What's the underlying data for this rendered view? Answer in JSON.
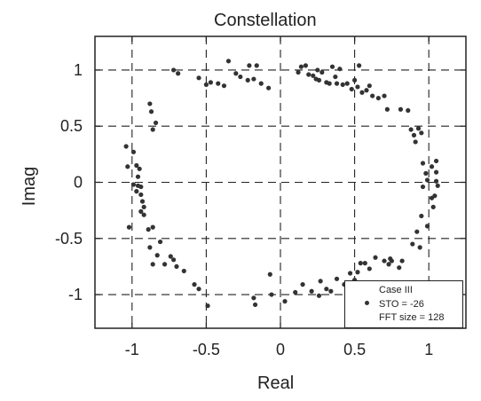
{
  "chart_data": {
    "type": "scatter",
    "title": "Constellation",
    "xlabel": "Real",
    "ylabel": "Imag",
    "xlim": [
      -1.25,
      1.25
    ],
    "ylim": [
      -1.3,
      1.3
    ],
    "xticks": [
      -1,
      -0.5,
      0,
      0.5,
      1
    ],
    "xtick_labels": [
      "-1",
      "-0.5",
      "0",
      "0.5",
      "1"
    ],
    "yticks": [
      1,
      0.5,
      0,
      -0.5,
      -1
    ],
    "ytick_labels": [
      "1",
      "0.5",
      "0",
      "-0.5",
      "-1"
    ],
    "grid": true,
    "grid_style": "dashed",
    "legend": {
      "placement": "bottom-right",
      "lines": [
        "Case III",
        "STO = -26",
        "FFT size = 128"
      ]
    },
    "marker_color": "#333333",
    "points": [
      {
        "x": -0.72,
        "y": 1.0
      },
      {
        "x": -0.69,
        "y": 0.97
      },
      {
        "x": -0.55,
        "y": 0.93
      },
      {
        "x": -0.5,
        "y": 0.87
      },
      {
        "x": -0.47,
        "y": 0.89
      },
      {
        "x": -0.42,
        "y": 0.88
      },
      {
        "x": -0.38,
        "y": 0.86
      },
      {
        "x": -0.35,
        "y": 1.08
      },
      {
        "x": -0.3,
        "y": 0.97
      },
      {
        "x": -0.27,
        "y": 0.94
      },
      {
        "x": -0.22,
        "y": 0.91
      },
      {
        "x": -0.21,
        "y": 1.04
      },
      {
        "x": -0.18,
        "y": 0.92
      },
      {
        "x": -0.16,
        "y": 1.04
      },
      {
        "x": -0.13,
        "y": 0.88
      },
      {
        "x": -0.08,
        "y": 0.84
      },
      {
        "x": 0.12,
        "y": 0.98
      },
      {
        "x": 0.14,
        "y": 1.03
      },
      {
        "x": 0.17,
        "y": 1.04
      },
      {
        "x": 0.19,
        "y": 0.96
      },
      {
        "x": 0.22,
        "y": 0.95
      },
      {
        "x": 0.24,
        "y": 0.92
      },
      {
        "x": 0.25,
        "y": 1.0
      },
      {
        "x": 0.26,
        "y": 0.91
      },
      {
        "x": 0.28,
        "y": 0.98
      },
      {
        "x": 0.31,
        "y": 0.89
      },
      {
        "x": 0.33,
        "y": 0.88
      },
      {
        "x": 0.35,
        "y": 1.03
      },
      {
        "x": 0.37,
        "y": 0.94
      },
      {
        "x": 0.38,
        "y": 0.88
      },
      {
        "x": 0.4,
        "y": 1.01
      },
      {
        "x": 0.42,
        "y": 0.87
      },
      {
        "x": 0.45,
        "y": 0.88
      },
      {
        "x": 0.48,
        "y": 0.83
      },
      {
        "x": 0.5,
        "y": 0.91
      },
      {
        "x": 0.52,
        "y": 0.85
      },
      {
        "x": 0.53,
        "y": 1.04
      },
      {
        "x": 0.55,
        "y": 0.8
      },
      {
        "x": 0.58,
        "y": 0.82
      },
      {
        "x": 0.6,
        "y": 0.86
      },
      {
        "x": 0.62,
        "y": 0.77
      },
      {
        "x": 0.66,
        "y": 0.75
      },
      {
        "x": 0.7,
        "y": 0.77
      },
      {
        "x": 0.72,
        "y": 0.65
      },
      {
        "x": 0.81,
        "y": 0.65
      },
      {
        "x": 0.86,
        "y": 0.64
      },
      {
        "x": 0.88,
        "y": 0.47
      },
      {
        "x": 0.9,
        "y": 0.42
      },
      {
        "x": 0.91,
        "y": 0.36
      },
      {
        "x": 0.93,
        "y": 0.48
      },
      {
        "x": 0.95,
        "y": 0.44
      },
      {
        "x": -0.88,
        "y": 0.7
      },
      {
        "x": -0.87,
        "y": 0.63
      },
      {
        "x": -0.86,
        "y": 0.47
      },
      {
        "x": -0.84,
        "y": 0.53
      },
      {
        "x": -1.04,
        "y": 0.32
      },
      {
        "x": -0.99,
        "y": 0.27
      },
      {
        "x": -1.03,
        "y": 0.14
      },
      {
        "x": -0.97,
        "y": 0.15
      },
      {
        "x": -0.95,
        "y": 0.12
      },
      {
        "x": -0.96,
        "y": 0.05
      },
      {
        "x": -0.99,
        "y": -0.02
      },
      {
        "x": -0.96,
        "y": -0.03
      },
      {
        "x": -0.94,
        "y": -0.04
      },
      {
        "x": -0.97,
        "y": -0.08
      },
      {
        "x": -0.94,
        "y": -0.11
      },
      {
        "x": -0.93,
        "y": -0.17
      },
      {
        "x": -0.92,
        "y": -0.22
      },
      {
        "x": -0.94,
        "y": -0.26
      },
      {
        "x": -0.92,
        "y": -0.29
      },
      {
        "x": -1.02,
        "y": -0.4
      },
      {
        "x": -0.89,
        "y": -0.42
      },
      {
        "x": -0.86,
        "y": -0.4
      },
      {
        "x": -0.88,
        "y": -0.58
      },
      {
        "x": -0.81,
        "y": -0.53
      },
      {
        "x": -0.83,
        "y": -0.65
      },
      {
        "x": -0.86,
        "y": -0.73
      },
      {
        "x": -0.78,
        "y": -0.73
      },
      {
        "x": -0.74,
        "y": -0.66
      },
      {
        "x": -0.72,
        "y": -0.69
      },
      {
        "x": -0.7,
        "y": -0.75
      },
      {
        "x": -0.65,
        "y": -0.79
      },
      {
        "x": -0.58,
        "y": -0.91
      },
      {
        "x": -0.55,
        "y": -0.95
      },
      {
        "x": -0.49,
        "y": -1.1
      },
      {
        "x": 0.96,
        "y": 0.17
      },
      {
        "x": 1.05,
        "y": 0.19
      },
      {
        "x": 1.02,
        "y": 0.14
      },
      {
        "x": 0.98,
        "y": 0.08
      },
      {
        "x": 1.05,
        "y": 0.09
      },
      {
        "x": 0.99,
        "y": 0.02
      },
      {
        "x": 1.05,
        "y": 0.01
      },
      {
        "x": 0.96,
        "y": -0.04
      },
      {
        "x": 1.06,
        "y": -0.03
      },
      {
        "x": 1.04,
        "y": -0.12
      },
      {
        "x": 1.02,
        "y": -0.14
      },
      {
        "x": 1.03,
        "y": -0.22
      },
      {
        "x": 0.95,
        "y": -0.3
      },
      {
        "x": 0.99,
        "y": -0.39
      },
      {
        "x": 0.92,
        "y": -0.44
      },
      {
        "x": 0.89,
        "y": -0.55
      },
      {
        "x": 0.94,
        "y": -0.58
      },
      {
        "x": -0.18,
        "y": -1.03
      },
      {
        "x": -0.17,
        "y": -1.09
      },
      {
        "x": -0.07,
        "y": -0.82
      },
      {
        "x": -0.06,
        "y": -1.0
      },
      {
        "x": 0.03,
        "y": -1.06
      },
      {
        "x": 0.1,
        "y": -0.98
      },
      {
        "x": 0.15,
        "y": -0.91
      },
      {
        "x": 0.21,
        "y": -0.97
      },
      {
        "x": 0.26,
        "y": -1.01
      },
      {
        "x": 0.27,
        "y": -0.88
      },
      {
        "x": 0.31,
        "y": -0.95
      },
      {
        "x": 0.34,
        "y": -0.97
      },
      {
        "x": 0.38,
        "y": -0.86
      },
      {
        "x": 0.43,
        "y": -0.91
      },
      {
        "x": 0.47,
        "y": -0.81
      },
      {
        "x": 0.5,
        "y": -0.87
      },
      {
        "x": 0.52,
        "y": -0.8
      },
      {
        "x": 0.54,
        "y": -0.72
      },
      {
        "x": 0.57,
        "y": -0.72
      },
      {
        "x": 0.6,
        "y": -0.77
      },
      {
        "x": 0.64,
        "y": -0.67
      },
      {
        "x": 0.7,
        "y": -0.7
      },
      {
        "x": 0.73,
        "y": -0.73
      },
      {
        "x": 0.74,
        "y": -0.68
      },
      {
        "x": 0.75,
        "y": -0.7
      },
      {
        "x": 0.82,
        "y": -0.7
      },
      {
        "x": 0.8,
        "y": -0.76
      }
    ]
  }
}
